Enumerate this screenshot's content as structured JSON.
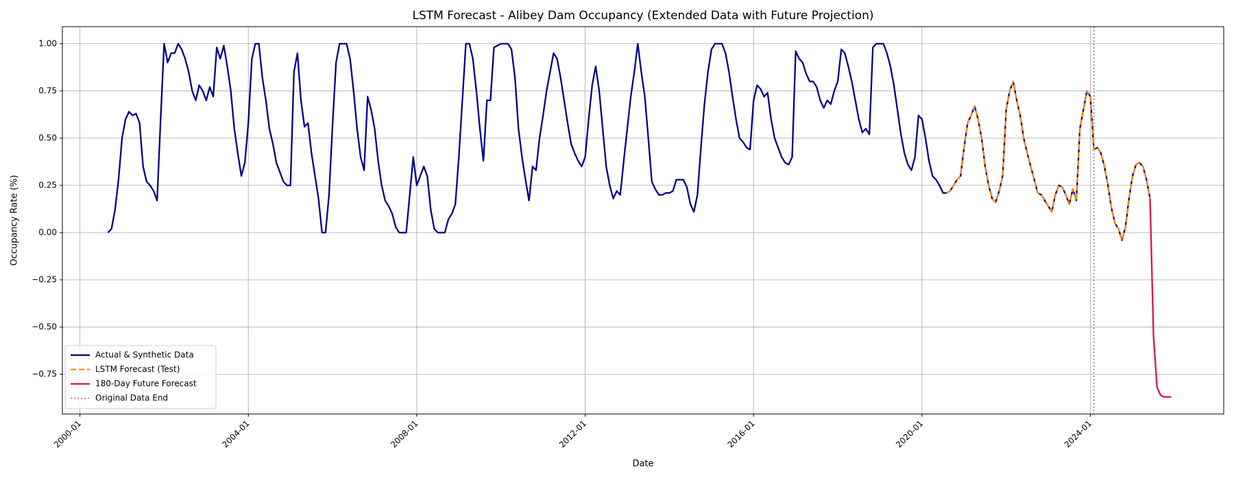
{
  "chart_data": {
    "type": "line",
    "title": "LSTM Forecast - Alibey Dam Occupancy (Extended Data with Future Projection)",
    "x_label": "Date",
    "y_label": "Occupancy Rate (%)",
    "xlim": [
      "1999-08",
      "2027-03"
    ],
    "xticks": [
      "2000-01",
      "2004-01",
      "2008-01",
      "2012-01",
      "2016-01",
      "2020-01",
      "2024-01"
    ],
    "ylim": [
      -0.96,
      1.09
    ],
    "yticks": [
      {
        "value": -0.75,
        "label": "−0.75"
      },
      {
        "value": -0.5,
        "label": "−0.50"
      },
      {
        "value": -0.25,
        "label": "−0.25"
      },
      {
        "value": 0,
        "label": "0.00"
      },
      {
        "value": 0.25,
        "label": "0.25"
      },
      {
        "value": 0.5,
        "label": "0.50"
      },
      {
        "value": 0.75,
        "label": "0.75"
      },
      {
        "value": 1,
        "label": "1.00"
      }
    ],
    "grid": true,
    "legend_position": "lower-left",
    "series": [
      {
        "name": "Actual & Synthetic Data",
        "color": "#00008b",
        "dash": "solid",
        "x": [
          "2000-09",
          "2000-10",
          "2000-11",
          "2000-12",
          "2001-01",
          "2001-02",
          "2001-03",
          "2001-04",
          "2001-05",
          "2001-06",
          "2001-07",
          "2001-08",
          "2001-09",
          "2001-10",
          "2001-11",
          "2001-12",
          "2002-01",
          "2002-02",
          "2002-03",
          "2002-04",
          "2002-05",
          "2002-06",
          "2002-07",
          "2002-08",
          "2002-09",
          "2002-10",
          "2002-11",
          "2002-12",
          "2003-01",
          "2003-02",
          "2003-03",
          "2003-04",
          "2003-05",
          "2003-06",
          "2003-07",
          "2003-08",
          "2003-09",
          "2003-10",
          "2003-11",
          "2003-12",
          "2004-01",
          "2004-02",
          "2004-03",
          "2004-04",
          "2004-05",
          "2004-06",
          "2004-07",
          "2004-08",
          "2004-09",
          "2004-10",
          "2004-11",
          "2004-12",
          "2005-01",
          "2005-02",
          "2005-03",
          "2005-04",
          "2005-05",
          "2005-06",
          "2005-07",
          "2005-08",
          "2005-09",
          "2005-10",
          "2005-11",
          "2005-12",
          "2006-01",
          "2006-02",
          "2006-03",
          "2006-04",
          "2006-05",
          "2006-06",
          "2006-07",
          "2006-08",
          "2006-09",
          "2006-10",
          "2006-11",
          "2006-12",
          "2007-01",
          "2007-02",
          "2007-03",
          "2007-04",
          "2007-05",
          "2007-06",
          "2007-07",
          "2007-08",
          "2007-09",
          "2007-10",
          "2007-11",
          "2007-12",
          "2008-01",
          "2008-02",
          "2008-03",
          "2008-04",
          "2008-05",
          "2008-06",
          "2008-07",
          "2008-08",
          "2008-09",
          "2008-10",
          "2008-11",
          "2008-12",
          "2009-01",
          "2009-02",
          "2009-03",
          "2009-04",
          "2009-05",
          "2009-06",
          "2009-07",
          "2009-08",
          "2009-09",
          "2009-10",
          "2009-11",
          "2009-12",
          "2010-01",
          "2010-02",
          "2010-03",
          "2010-04",
          "2010-05",
          "2010-06",
          "2010-07",
          "2010-08",
          "2010-09",
          "2010-10",
          "2010-11",
          "2010-12",
          "2011-01",
          "2011-02",
          "2011-03",
          "2011-04",
          "2011-05",
          "2011-06",
          "2011-07",
          "2011-08",
          "2011-09",
          "2011-10",
          "2011-11",
          "2011-12",
          "2012-01",
          "2012-02",
          "2012-03",
          "2012-04",
          "2012-05",
          "2012-06",
          "2012-07",
          "2012-08",
          "2012-09",
          "2012-10",
          "2012-11",
          "2012-12",
          "2013-01",
          "2013-02",
          "2013-03",
          "2013-04",
          "2013-05",
          "2013-06",
          "2013-07",
          "2013-08",
          "2013-09",
          "2013-10",
          "2013-11",
          "2013-12",
          "2014-01",
          "2014-02",
          "2014-03",
          "2014-04",
          "2014-05",
          "2014-06",
          "2014-07",
          "2014-08",
          "2014-09",
          "2014-10",
          "2014-11",
          "2014-12",
          "2015-01",
          "2015-02",
          "2015-03",
          "2015-04",
          "2015-05",
          "2015-06",
          "2015-07",
          "2015-08",
          "2015-09",
          "2015-10",
          "2015-11",
          "2015-12",
          "2016-01",
          "2016-02",
          "2016-03",
          "2016-04",
          "2016-05",
          "2016-06",
          "2016-07",
          "2016-08",
          "2016-09",
          "2016-10",
          "2016-11",
          "2016-12",
          "2017-01",
          "2017-02",
          "2017-03",
          "2017-04",
          "2017-05",
          "2017-06",
          "2017-07",
          "2017-08",
          "2017-09",
          "2017-10",
          "2017-11",
          "2017-12",
          "2018-01",
          "2018-02",
          "2018-03",
          "2018-04",
          "2018-05",
          "2018-06",
          "2018-07",
          "2018-08",
          "2018-09",
          "2018-10",
          "2018-11",
          "2018-12",
          "2019-01",
          "2019-02",
          "2019-03",
          "2019-04",
          "2019-05",
          "2019-06",
          "2019-07",
          "2019-08",
          "2019-09",
          "2019-10",
          "2019-11",
          "2019-12",
          "2020-01",
          "2020-02",
          "2020-03",
          "2020-04",
          "2020-05",
          "2020-06",
          "2020-07",
          "2020-08",
          "2020-09",
          "2020-10",
          "2020-11",
          "2020-12",
          "2021-01",
          "2021-02",
          "2021-03",
          "2021-04",
          "2021-05",
          "2021-06",
          "2021-07",
          "2021-08",
          "2021-09",
          "2021-10",
          "2021-11",
          "2021-12",
          "2022-01",
          "2022-02",
          "2022-03",
          "2022-04",
          "2022-05",
          "2022-06",
          "2022-07",
          "2022-08",
          "2022-09",
          "2022-10",
          "2022-11",
          "2022-12",
          "2023-01",
          "2023-02",
          "2023-03",
          "2023-04",
          "2023-05",
          "2023-06",
          "2023-07",
          "2023-08",
          "2023-09",
          "2023-10",
          "2023-11",
          "2023-12",
          "2024-01",
          "2024-02",
          "2024-03",
          "2024-04",
          "2024-05",
          "2024-06",
          "2024-07",
          "2024-08",
          "2024-09",
          "2024-10",
          "2024-11",
          "2024-12",
          "2025-01",
          "2025-02",
          "2025-03",
          "2025-04",
          "2025-05",
          "2025-06"
        ],
        "values": [
          0,
          0.02,
          0.12,
          0.28,
          0.5,
          0.6,
          0.64,
          0.62,
          0.63,
          0.58,
          0.35,
          0.27,
          0.25,
          0.22,
          0.17,
          0.6,
          1.0,
          0.9,
          0.95,
          0.95,
          1.0,
          0.97,
          0.92,
          0.85,
          0.75,
          0.7,
          0.78,
          0.75,
          0.7,
          0.77,
          0.72,
          0.98,
          0.92,
          0.99,
          0.88,
          0.75,
          0.55,
          0.42,
          0.3,
          0.37,
          0.58,
          0.92,
          1.0,
          1.0,
          0.82,
          0.7,
          0.55,
          0.47,
          0.37,
          0.32,
          0.27,
          0.25,
          0.25,
          0.85,
          0.95,
          0.7,
          0.56,
          0.58,
          0.42,
          0.3,
          0.18,
          0,
          0,
          0.2,
          0.57,
          0.9,
          1.0,
          1.0,
          1.0,
          0.92,
          0.75,
          0.55,
          0.4,
          0.33,
          0.72,
          0.65,
          0.55,
          0.38,
          0.25,
          0.17,
          0.14,
          0.1,
          0.03,
          0,
          0,
          0,
          0.2,
          0.4,
          0.25,
          0.3,
          0.35,
          0.3,
          0.12,
          0.02,
          0,
          0,
          0,
          0.07,
          0.1,
          0.15,
          0.4,
          0.7,
          1.0,
          1.0,
          0.92,
          0.75,
          0.55,
          0.38,
          0.7,
          0.7,
          0.98,
          0.99,
          1.0,
          1.0,
          1.0,
          0.97,
          0.82,
          0.55,
          0.4,
          0.28,
          0.17,
          0.35,
          0.33,
          0.5,
          0.62,
          0.75,
          0.85,
          0.95,
          0.92,
          0.82,
          0.7,
          0.58,
          0.47,
          0.42,
          0.38,
          0.35,
          0.4,
          0.6,
          0.78,
          0.88,
          0.75,
          0.55,
          0.35,
          0.25,
          0.18,
          0.22,
          0.2,
          0.38,
          0.55,
          0.72,
          0.85,
          1.0,
          0.85,
          0.72,
          0.5,
          0.27,
          0.23,
          0.2,
          0.2,
          0.21,
          0.21,
          0.22,
          0.28,
          0.28,
          0.28,
          0.24,
          0.15,
          0.11,
          0.2,
          0.45,
          0.68,
          0.85,
          0.97,
          1.0,
          1.0,
          1.0,
          0.95,
          0.85,
          0.72,
          0.6,
          0.5,
          0.48,
          0.45,
          0.44,
          0.7,
          0.78,
          0.76,
          0.72,
          0.74,
          0.6,
          0.5,
          0.45,
          0.4,
          0.37,
          0.36,
          0.4,
          0.96,
          0.92,
          0.9,
          0.84,
          0.8,
          0.8,
          0.77,
          0.7,
          0.66,
          0.7,
          0.68,
          0.75,
          0.8,
          0.97,
          0.95,
          0.88,
          0.8,
          0.7,
          0.6,
          0.53,
          0.55,
          0.52,
          0.98,
          1.0,
          1.0,
          1.0,
          0.95,
          0.88,
          0.78,
          0.65,
          0.52,
          0.42,
          0.36,
          0.33,
          0.4,
          0.62,
          0.6,
          0.5,
          0.38,
          0.3,
          0.28,
          0.25,
          0.21,
          0.21,
          0.22,
          0.25,
          0.28,
          0.3,
          0.45,
          0.58,
          0.62,
          0.67,
          0.6,
          0.5,
          0.35,
          0.25,
          0.18,
          0.16,
          0.22,
          0.3,
          0.65,
          0.75,
          0.8,
          0.7,
          0.62,
          0.5,
          0.42,
          0.35,
          0.28,
          0.21,
          0.2,
          0.17,
          0.14,
          0.11,
          0.2,
          0.25,
          0.24,
          0.2,
          0.15,
          0.23,
          0.17,
          0.55,
          0.65,
          0.75,
          0.72,
          0.44,
          0.45,
          0.42,
          0.35,
          0.25,
          0.13,
          0.05,
          0.02,
          -0.04,
          0.03,
          0.18,
          0.3,
          0.36,
          0.37,
          0.35,
          0.28,
          0.18
        ]
      },
      {
        "name": "LSTM Forecast (Test)",
        "color": "#ff8c00",
        "dash": "dashed",
        "x": [
          "2020-08",
          "2020-09",
          "2020-10",
          "2020-11",
          "2020-12",
          "2021-01",
          "2021-02",
          "2021-03",
          "2021-04",
          "2021-05",
          "2021-06",
          "2021-07",
          "2021-08",
          "2021-09",
          "2021-10",
          "2021-11",
          "2021-12",
          "2022-01",
          "2022-02",
          "2022-03",
          "2022-04",
          "2022-05",
          "2022-06",
          "2022-07",
          "2022-08",
          "2022-09",
          "2022-10",
          "2022-11",
          "2022-12",
          "2023-01",
          "2023-02",
          "2023-03",
          "2023-04",
          "2023-05",
          "2023-06",
          "2023-07",
          "2023-08",
          "2023-09",
          "2023-10",
          "2023-11",
          "2023-12",
          "2024-01",
          "2024-02",
          "2024-03",
          "2024-04",
          "2024-05",
          "2024-06",
          "2024-07",
          "2024-08",
          "2024-09",
          "2024-10",
          "2024-11",
          "2024-12",
          "2025-01",
          "2025-02",
          "2025-03",
          "2025-04",
          "2025-05",
          "2025-06"
        ],
        "values": [
          0.21,
          0.22,
          0.25,
          0.28,
          0.3,
          0.45,
          0.58,
          0.62,
          0.67,
          0.6,
          0.5,
          0.35,
          0.25,
          0.18,
          0.16,
          0.22,
          0.3,
          0.65,
          0.75,
          0.8,
          0.7,
          0.62,
          0.5,
          0.42,
          0.35,
          0.28,
          0.21,
          0.2,
          0.17,
          0.14,
          0.11,
          0.2,
          0.25,
          0.24,
          0.2,
          0.15,
          0.23,
          0.17,
          0.55,
          0.65,
          0.75,
          0.72,
          0.44,
          0.45,
          0.42,
          0.35,
          0.25,
          0.13,
          0.05,
          0.02,
          -0.04,
          0.03,
          0.18,
          0.3,
          0.36,
          0.37,
          0.35,
          0.28,
          0.18
        ]
      },
      {
        "name": "180-Day Future Forecast",
        "color": "#dc143c",
        "dash": "solid",
        "x": [
          "2025-06",
          "2025-07",
          "2025-08",
          "2025-09",
          "2025-10",
          "2025-11",
          "2025-12"
        ],
        "values": [
          0.18,
          -0.55,
          -0.82,
          -0.86,
          -0.87,
          -0.87,
          -0.87
        ]
      }
    ],
    "vlines": [
      {
        "x": "2024-02",
        "label": "Original Data End",
        "color": "#808080",
        "dash": "dotted"
      }
    ]
  }
}
